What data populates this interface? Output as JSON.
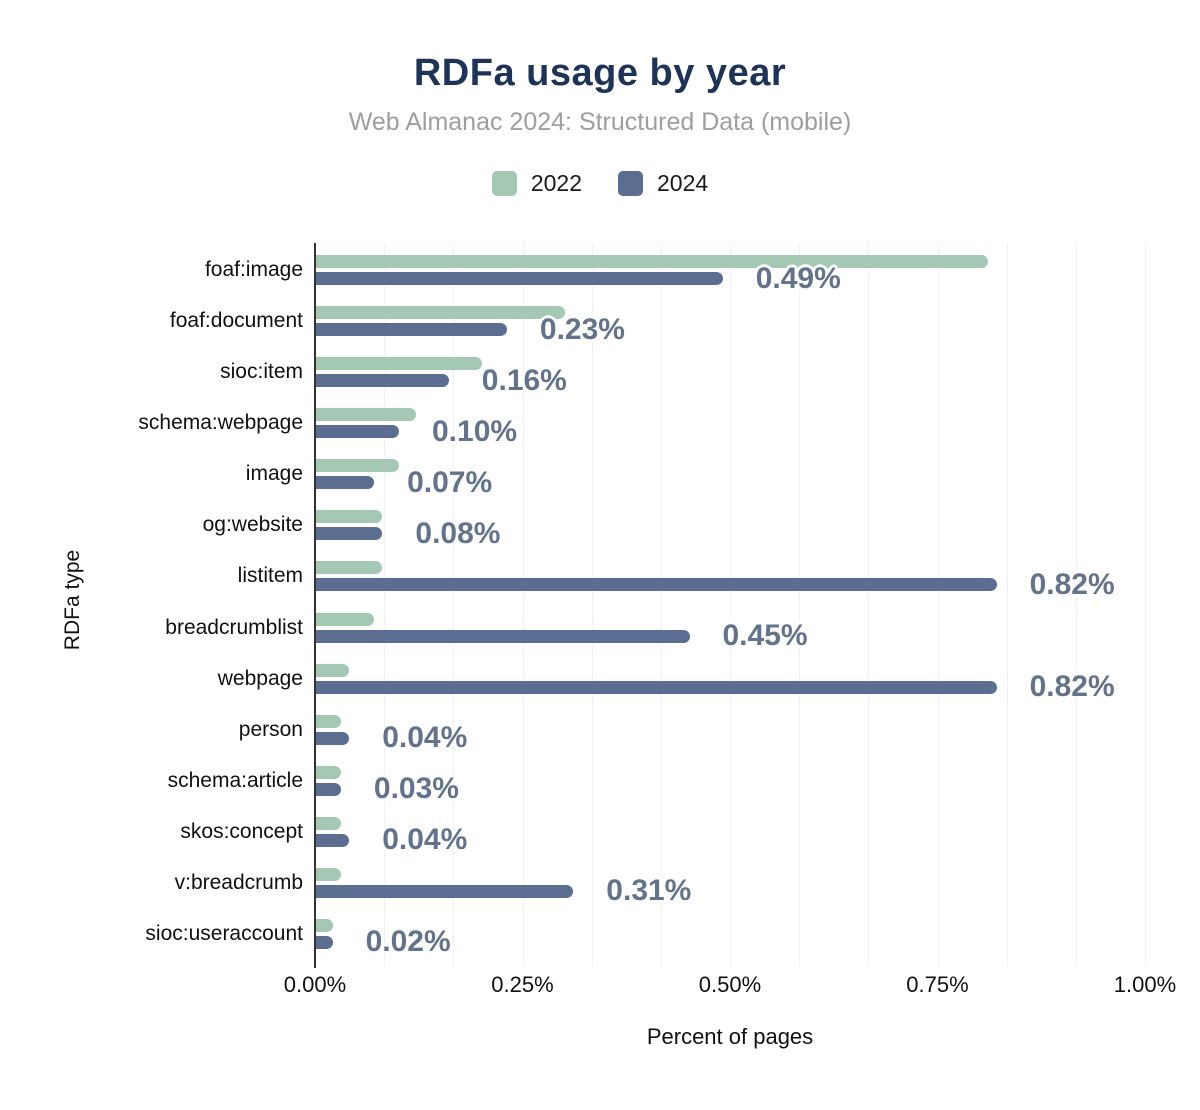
{
  "header": {
    "title": "RDFa usage by year",
    "subtitle": "Web Almanac 2024: Structured Data (mobile)"
  },
  "legend": [
    {
      "label": "2022",
      "color": "#a5c8b4"
    },
    {
      "label": "2024",
      "color": "#5b6e91"
    }
  ],
  "chart_data": {
    "type": "bar",
    "orientation": "horizontal",
    "title": "RDFa usage by year",
    "subtitle": "Web Almanac 2024: Structured Data (mobile)",
    "xlabel": "Percent of pages",
    "ylabel": "RDFa type",
    "xlim": [
      0,
      1
    ],
    "xtick_labels": [
      "0.00%",
      "0.25%",
      "0.50%",
      "0.75%",
      "1.00%"
    ],
    "grid_divisions": 12,
    "legend_position": "top",
    "categories": [
      "foaf:image",
      "foaf:document",
      "sioc:item",
      "schema:webpage",
      "image",
      "og:website",
      "listitem",
      "breadcrumblist",
      "webpage",
      "person",
      "schema:article",
      "skos:concept",
      "v:breadcrumb",
      "sioc:useraccount"
    ],
    "series": [
      {
        "name": "2022",
        "color": "#a5c8b4",
        "values": [
          0.81,
          0.3,
          0.2,
          0.12,
          0.1,
          0.08,
          0.08,
          0.07,
          0.04,
          0.03,
          0.03,
          0.03,
          0.03,
          0.02
        ]
      },
      {
        "name": "2024",
        "color": "#5b6e91",
        "values": [
          0.49,
          0.23,
          0.16,
          0.1,
          0.07,
          0.08,
          0.82,
          0.45,
          0.82,
          0.04,
          0.03,
          0.04,
          0.31,
          0.02
        ],
        "labels": [
          "0.49%",
          "0.23%",
          "0.16%",
          "0.10%",
          "0.07%",
          "0.08%",
          "0.82%",
          "0.45%",
          "0.82%",
          "0.04%",
          "0.03%",
          "0.04%",
          "0.31%",
          "0.02%"
        ]
      }
    ]
  },
  "colors": {
    "title": "#1d3357",
    "subtitle": "#9e9e9e",
    "series_2022": "#a5c8b4",
    "series_2024": "#5b6e91",
    "data_label": "#64738c",
    "axis_line": "#333333",
    "gridline": "#f0f0f0",
    "text": "#111111",
    "background": "#ffffff"
  }
}
